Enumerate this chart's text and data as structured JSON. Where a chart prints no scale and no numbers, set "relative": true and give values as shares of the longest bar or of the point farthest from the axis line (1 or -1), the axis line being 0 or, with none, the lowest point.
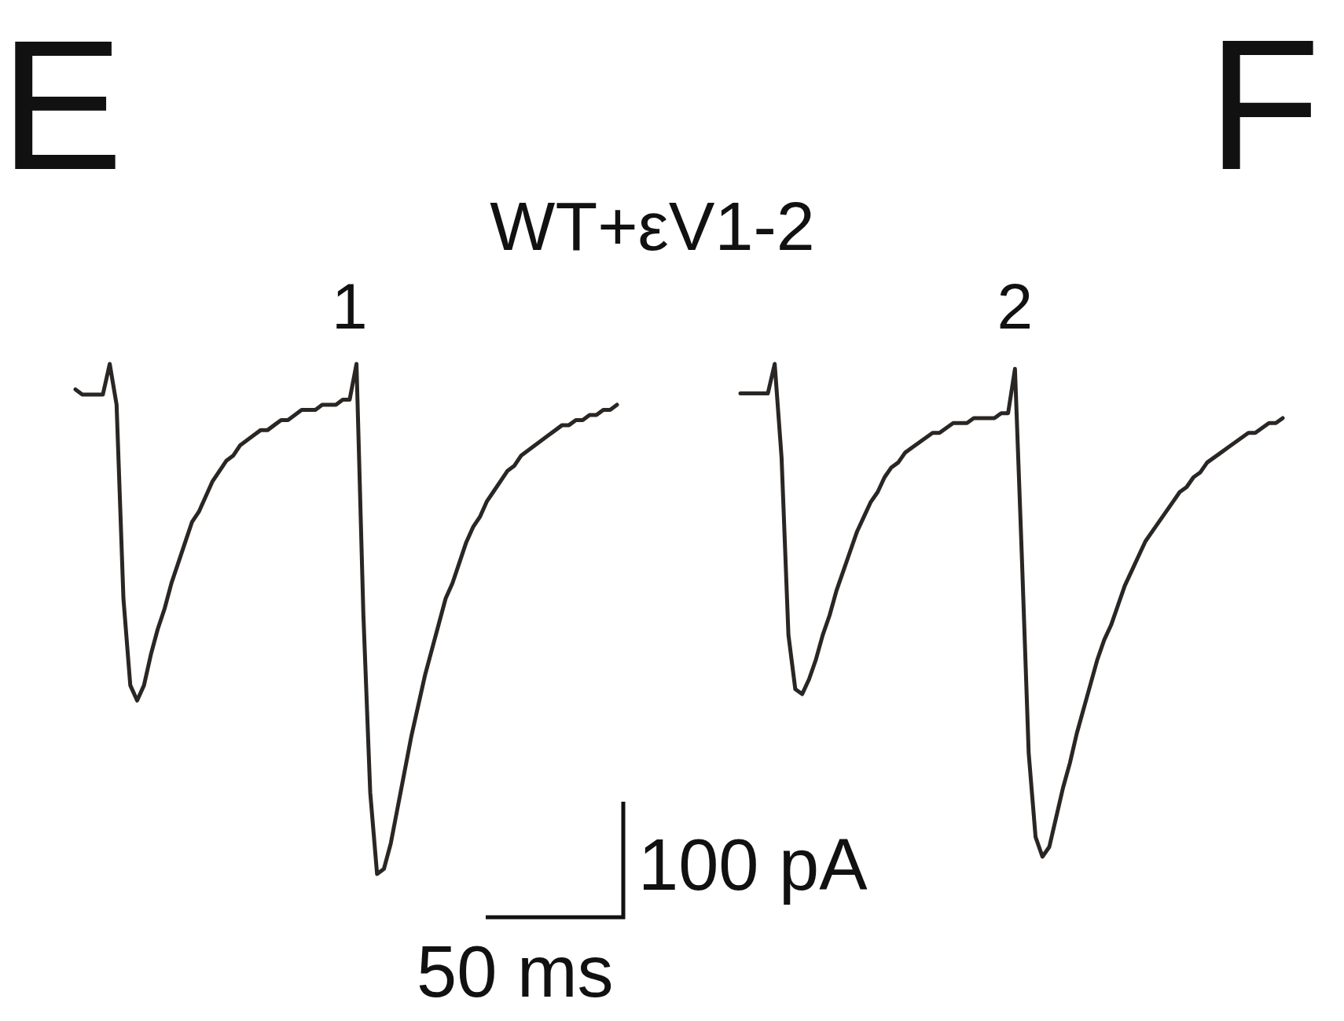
{
  "chart_data": [
    {
      "type": "line",
      "title": "WT+εV1-2",
      "relative": true,
      "annotations": [
        "E",
        "F",
        "100 pA",
        "50 ms"
      ],
      "categories": [
        null,
        null,
        null,
        null,
        null,
        null,
        null,
        null,
        null,
        null,
        null,
        null,
        null,
        null,
        null,
        null,
        null,
        null,
        null,
        null,
        null,
        null,
        null,
        null,
        null,
        null,
        null,
        null,
        null,
        null,
        null,
        null,
        null,
        null,
        null,
        null,
        null,
        null,
        null,
        null,
        null,
        null,
        null,
        null,
        null,
        null,
        null,
        null,
        null,
        null,
        null,
        null,
        null,
        null,
        null,
        null,
        null,
        null,
        null,
        null,
        null,
        null,
        null,
        null,
        null,
        null,
        null,
        null,
        null,
        null,
        null,
        null,
        null,
        null,
        null,
        null,
        null,
        null,
        null,
        null
      ],
      "series": [
        {
          "name": "1",
          "color": "#2a2624",
          "values": [
            0.95,
            0.94,
            0.94,
            0.94,
            0.94,
            1,
            0.92,
            0.54,
            0.37,
            0.34,
            0.37,
            0.43,
            0.48,
            0.52,
            0.57,
            0.61,
            0.65,
            0.69,
            0.71,
            0.74,
            0.77,
            0.79,
            0.81,
            0.82,
            0.84,
            0.85,
            0.86,
            0.87,
            0.87,
            0.88,
            0.89,
            0.89,
            0.9,
            0.91,
            0.91,
            0.91,
            0.92,
            0.92,
            0.92,
            0.93,
            0.93,
            1,
            0.51,
            0.16,
            0,
            0.01,
            0.06,
            0.13,
            0.2,
            0.27,
            0.33,
            0.39,
            0.44,
            0.49,
            0.54,
            0.57,
            0.61,
            0.65,
            0.68,
            0.7,
            0.73,
            0.75,
            0.77,
            0.79,
            0.8,
            0.82,
            0.83,
            0.84,
            0.85,
            0.86,
            0.87,
            0.88,
            0.88,
            0.89,
            0.89,
            0.9,
            0.9,
            0.91,
            0.91,
            0.92
          ]
        }
      ]
    },
    {
      "type": "line",
      "relative": true,
      "categories": [
        null,
        null,
        null,
        null,
        null,
        null,
        null,
        null,
        null,
        null,
        null,
        null,
        null,
        null,
        null,
        null,
        null,
        null,
        null,
        null,
        null,
        null,
        null,
        null,
        null,
        null,
        null,
        null,
        null,
        null,
        null,
        null,
        null,
        null,
        null,
        null,
        null,
        null,
        null,
        null,
        null,
        null,
        null,
        null,
        null,
        null,
        null,
        null,
        null,
        null,
        null,
        null,
        null,
        null,
        null,
        null,
        null,
        null,
        null,
        null,
        null,
        null,
        null,
        null,
        null,
        null,
        null,
        null,
        null,
        null,
        null,
        null,
        null,
        null,
        null,
        null,
        null,
        null,
        null,
        null
      ],
      "series": [
        {
          "name": "2",
          "color": "#2a2624",
          "values": [
            0.94,
            0.94,
            0.94,
            0.94,
            0.94,
            1,
            0.81,
            0.45,
            0.34,
            0.33,
            0.36,
            0.4,
            0.45,
            0.49,
            0.54,
            0.58,
            0.62,
            0.66,
            0.69,
            0.72,
            0.74,
            0.77,
            0.79,
            0.8,
            0.82,
            0.83,
            0.84,
            0.85,
            0.86,
            0.86,
            0.87,
            0.88,
            0.88,
            0.88,
            0.89,
            0.89,
            0.89,
            0.89,
            0.9,
            0.9,
            0.99,
            0.61,
            0.21,
            0.04,
            0,
            0.02,
            0.08,
            0.14,
            0.19,
            0.25,
            0.3,
            0.35,
            0.4,
            0.44,
            0.47,
            0.51,
            0.55,
            0.58,
            0.61,
            0.64,
            0.66,
            0.68,
            0.7,
            0.72,
            0.74,
            0.75,
            0.77,
            0.78,
            0.8,
            0.81,
            0.82,
            0.83,
            0.84,
            0.85,
            0.86,
            0.86,
            0.87,
            0.88,
            0.88,
            0.89
          ]
        }
      ]
    }
  ]
}
